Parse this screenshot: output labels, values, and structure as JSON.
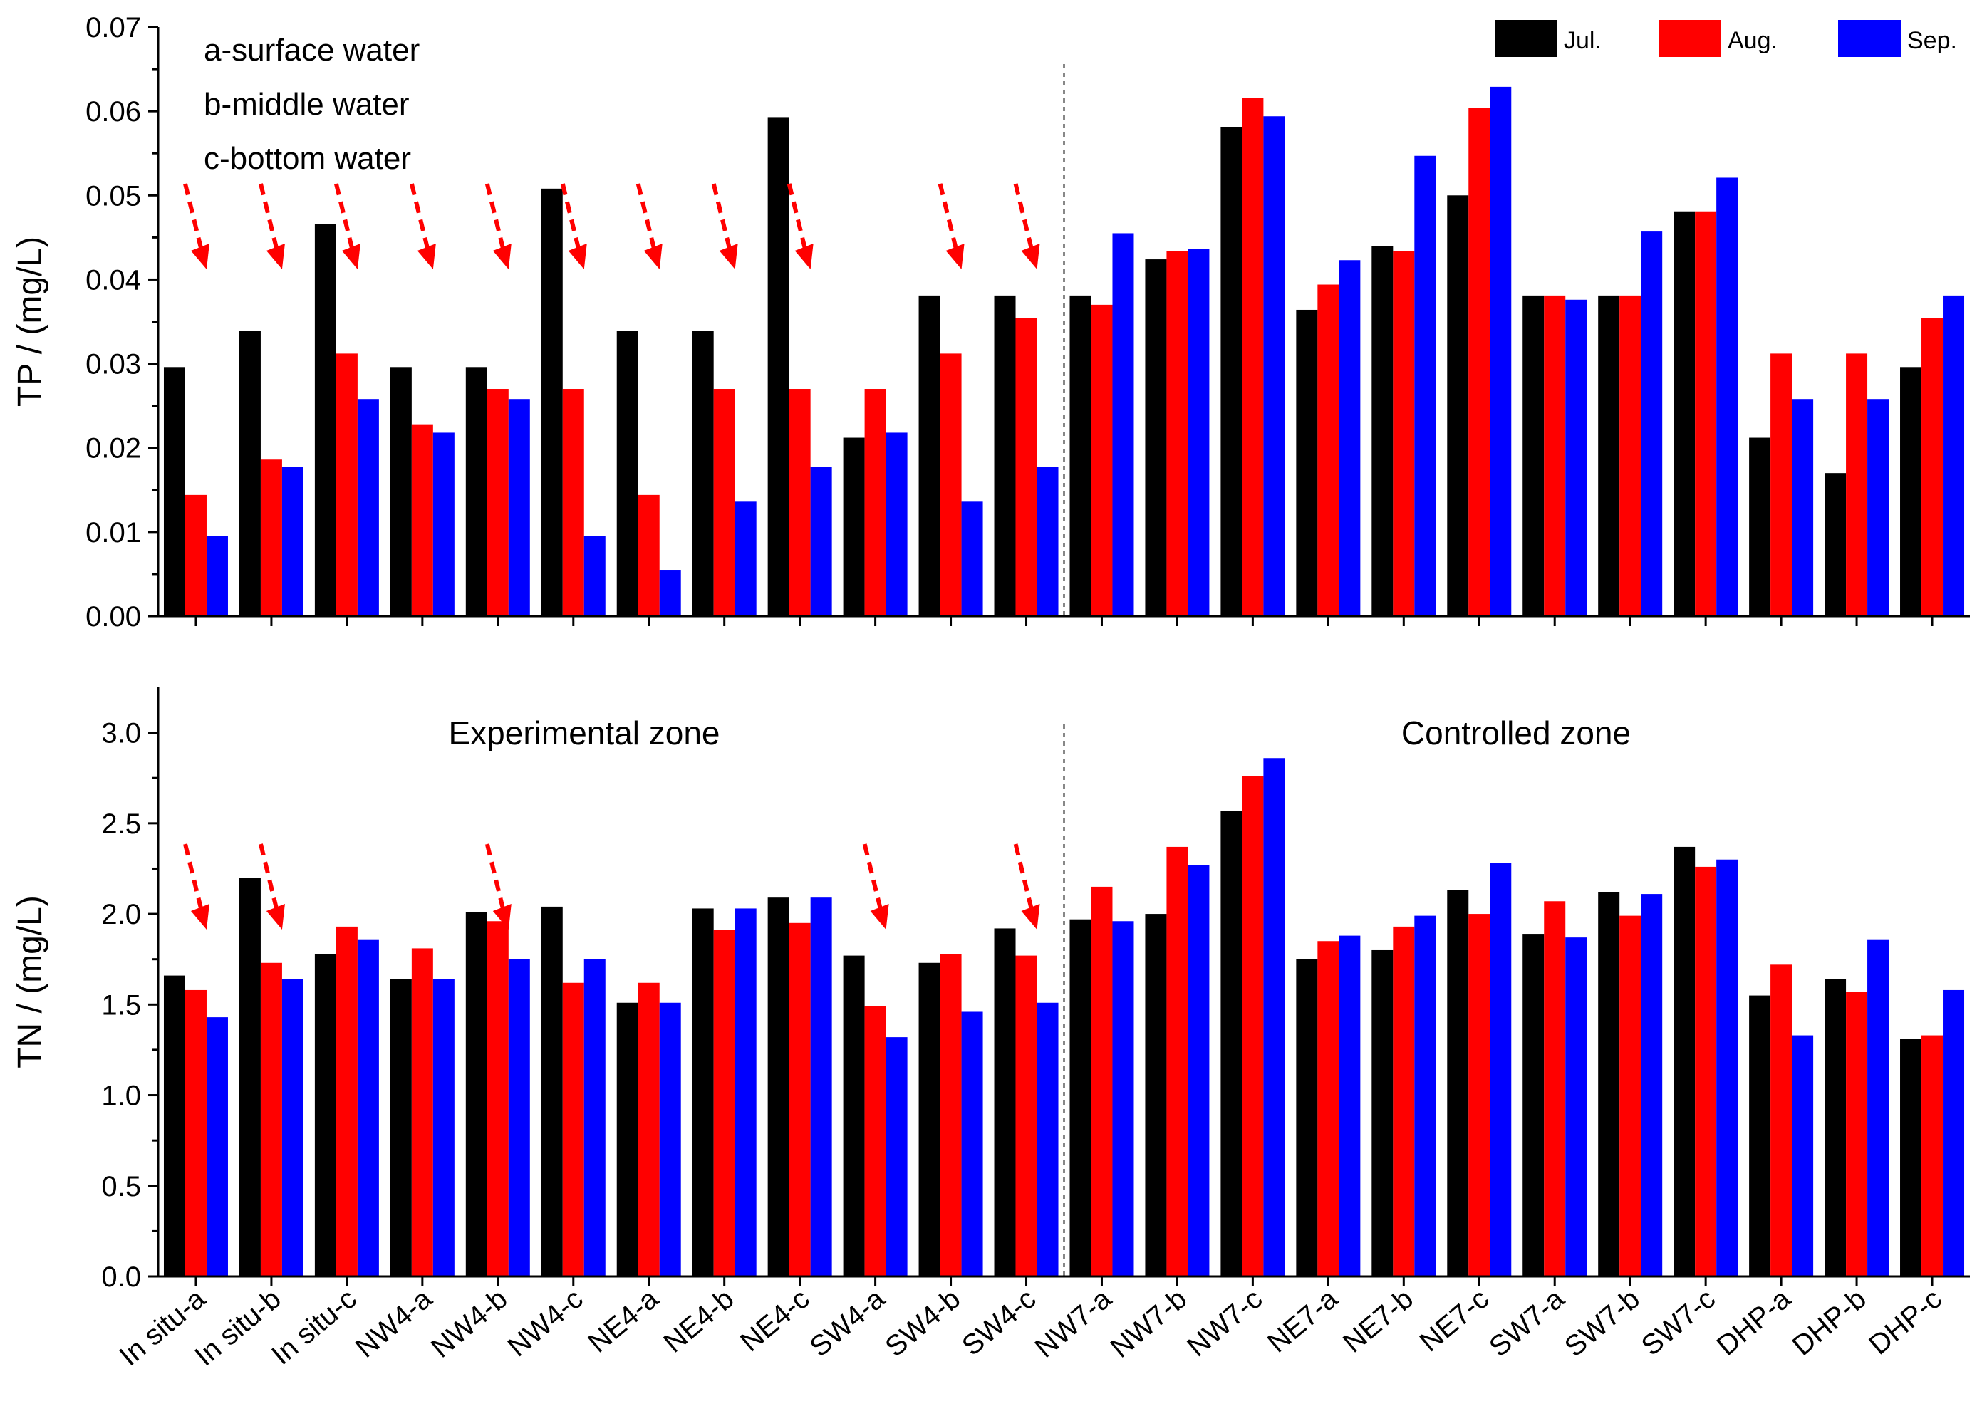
{
  "chart_data": [
    {
      "type": "bar",
      "id": "tp",
      "ylabel": "TP / (mg/L)",
      "ylim": [
        0,
        0.07
      ],
      "yticks": [
        "0.00",
        "0.01",
        "0.02",
        "0.03",
        "0.04",
        "0.05",
        "0.06",
        "0.07"
      ],
      "series": [
        {
          "name": "Jul.",
          "color": "#000000",
          "values": [
            0.0296,
            0.0339,
            0.0466,
            0.0296,
            0.0296,
            0.0508,
            0.0339,
            0.0339,
            0.0593,
            0.0212,
            0.0381,
            0.0381,
            0.0381,
            0.0424,
            0.0581,
            0.0364,
            0.044,
            0.05,
            0.0381,
            0.0381,
            0.0481,
            0.0212,
            0.017,
            0.0296
          ]
        },
        {
          "name": "Aug.",
          "color": "#ff0000",
          "values": [
            0.0144,
            0.0186,
            0.0312,
            0.0228,
            0.027,
            0.027,
            0.0144,
            0.027,
            0.027,
            0.027,
            0.0312,
            0.0354,
            0.037,
            0.0434,
            0.0616,
            0.0394,
            0.0434,
            0.0604,
            0.0381,
            0.0381,
            0.0481,
            0.0312,
            0.0312,
            0.0354
          ]
        },
        {
          "name": "Sep.",
          "color": "#0000ff",
          "values": [
            0.0095,
            0.0177,
            0.0258,
            0.0218,
            0.0258,
            0.0095,
            0.0055,
            0.0136,
            0.0177,
            0.0218,
            0.0136,
            0.0177,
            0.0455,
            0.0436,
            0.0594,
            0.0423,
            0.0547,
            0.0629,
            0.0376,
            0.0457,
            0.0521,
            0.0258,
            0.0258,
            0.0381
          ]
        }
      ],
      "arrow_categories": [
        0,
        1,
        2,
        3,
        4,
        5,
        6,
        7,
        8,
        10,
        11
      ],
      "annotations": [
        "a-surface water",
        "b-middle water",
        "c-bottom water"
      ]
    },
    {
      "type": "bar",
      "id": "tn",
      "ylabel": "TN / (mg/L)",
      "ylim": [
        0,
        3.25
      ],
      "yticks": [
        "0.0",
        "0.5",
        "1.0",
        "1.5",
        "2.0",
        "2.5",
        "3.0"
      ],
      "series": [
        {
          "name": "Jul.",
          "color": "#000000",
          "values": [
            1.66,
            2.2,
            1.78,
            1.64,
            2.01,
            2.04,
            1.51,
            2.03,
            2.09,
            1.77,
            1.73,
            1.92,
            1.97,
            2.0,
            2.57,
            1.75,
            1.8,
            2.13,
            1.89,
            2.12,
            2.37,
            1.55,
            1.64,
            1.31
          ]
        },
        {
          "name": "Aug.",
          "color": "#ff0000",
          "values": [
            1.58,
            1.73,
            1.93,
            1.81,
            1.96,
            1.62,
            1.62,
            1.91,
            1.95,
            1.49,
            1.78,
            1.77,
            2.15,
            2.37,
            2.76,
            1.85,
            1.93,
            2.0,
            2.07,
            1.99,
            2.26,
            1.72,
            1.57,
            1.33
          ]
        },
        {
          "name": "Sep.",
          "color": "#0000ff",
          "values": [
            1.43,
            1.64,
            1.86,
            1.64,
            1.75,
            1.75,
            1.51,
            2.03,
            2.09,
            1.32,
            1.46,
            1.51,
            1.96,
            2.27,
            2.86,
            1.88,
            1.99,
            2.28,
            1.87,
            2.11,
            2.3,
            1.33,
            1.86,
            1.58
          ]
        }
      ],
      "arrow_categories": [
        0,
        1,
        4,
        9,
        11
      ],
      "annotations": [
        "Experimental zone",
        "Controlled zone"
      ]
    }
  ],
  "categories": [
    "In situ-a",
    "In situ-b",
    "In situ-c",
    "NW4-a",
    "NW4-b",
    "NW4-c",
    "NE4-a",
    "NE4-b",
    "NE4-c",
    "SW4-a",
    "SW4-b",
    "SW4-c",
    "NW7-a",
    "NW7-b",
    "NW7-c",
    "NE7-a",
    "NE7-b",
    "NE7-c",
    "SW7-a",
    "SW7-b",
    "SW7-c",
    "DHP-a",
    "DHP-b",
    "DHP-c"
  ],
  "legend": [
    {
      "label": "Jul.",
      "color": "#000000"
    },
    {
      "label": "Aug.",
      "color": "#ff0000"
    },
    {
      "label": "Sep.",
      "color": "#0000ff"
    }
  ],
  "divider_after_category": 11,
  "arrow_color": "#ff0000"
}
